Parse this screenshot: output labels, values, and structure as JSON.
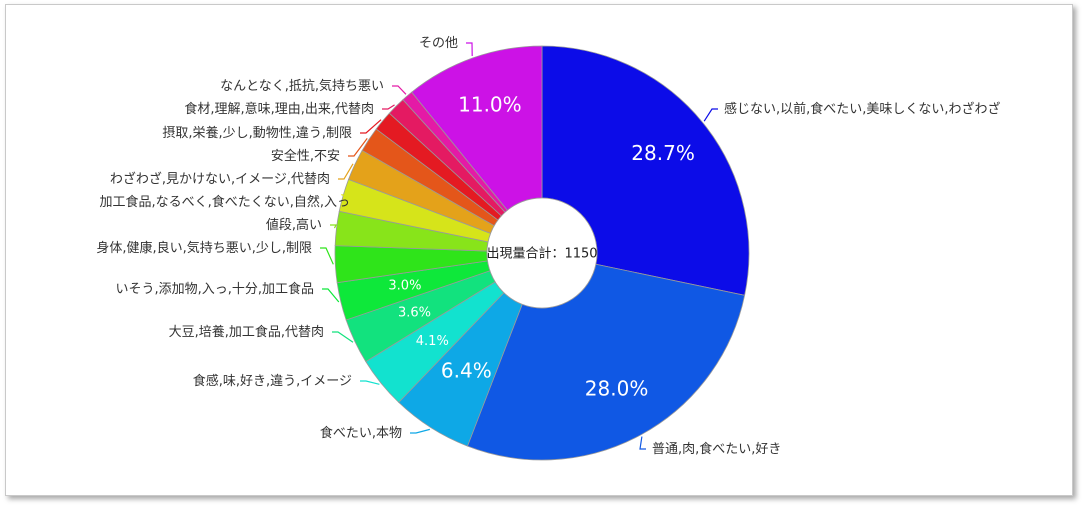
{
  "chart_data": {
    "type": "pie",
    "donut": true,
    "center_text": "出現量合計：1150",
    "slices": [
      {
        "label": "感じない,以前,食べたい,美味しくない,わざわざ",
        "value": 28.7,
        "pct_text": "28.7%",
        "color": "#0c0ce8"
      },
      {
        "label": "普通,肉,食べたい,好き",
        "value": 28.0,
        "pct_text": "28.0%",
        "color": "#1058e4"
      },
      {
        "label": "食べたい,本物",
        "value": 6.4,
        "pct_text": "6.4%",
        "color": "#0ea8e6"
      },
      {
        "label": "食感,味,好き,違う,イメージ",
        "value": 4.1,
        "pct_text": "4.1%",
        "color": "#12e2cf"
      },
      {
        "label": "大豆,培養,加工食品,代替肉",
        "value": 3.6,
        "pct_text": "3.6%",
        "color": "#12e27e"
      },
      {
        "label": "いそう,添加物,入っ,十分,加工食品",
        "value": 3.0,
        "pct_text": "3.0%",
        "color": "#0ee83a"
      },
      {
        "label": "身体,健康,良い,気持ち悪い,少し,制限",
        "value": 2.9,
        "pct_text": "",
        "color": "#2fe41a"
      },
      {
        "label": "値段,高い",
        "value": 2.7,
        "pct_text": "",
        "color": "#88e41a"
      },
      {
        "label": "加工食品,なるべく,食べたくない,自然,入っ",
        "value": 2.6,
        "pct_text": "",
        "color": "#d6e41a"
      },
      {
        "label": "わざわざ,見かけない,イメージ,代替肉",
        "value": 2.5,
        "pct_text": "",
        "color": "#e4a21a"
      },
      {
        "label": "安全性,不安",
        "value": 2.0,
        "pct_text": "",
        "color": "#e4561a"
      },
      {
        "label": "摂取,栄養,少し,動物性,違う,制限",
        "value": 1.6,
        "pct_text": "",
        "color": "#e41a22"
      },
      {
        "label": "食材,理解,意味,理由,出来,代替肉",
        "value": 1.5,
        "pct_text": "",
        "color": "#e41a62"
      },
      {
        "label": "なんとなく,抵抗,気持ち悪い",
        "value": 0.9,
        "pct_text": "",
        "color": "#e41aa6"
      },
      {
        "label": "その他",
        "value": 11.0,
        "pct_text": "11.0%",
        "color": "#cc12e6"
      }
    ]
  }
}
